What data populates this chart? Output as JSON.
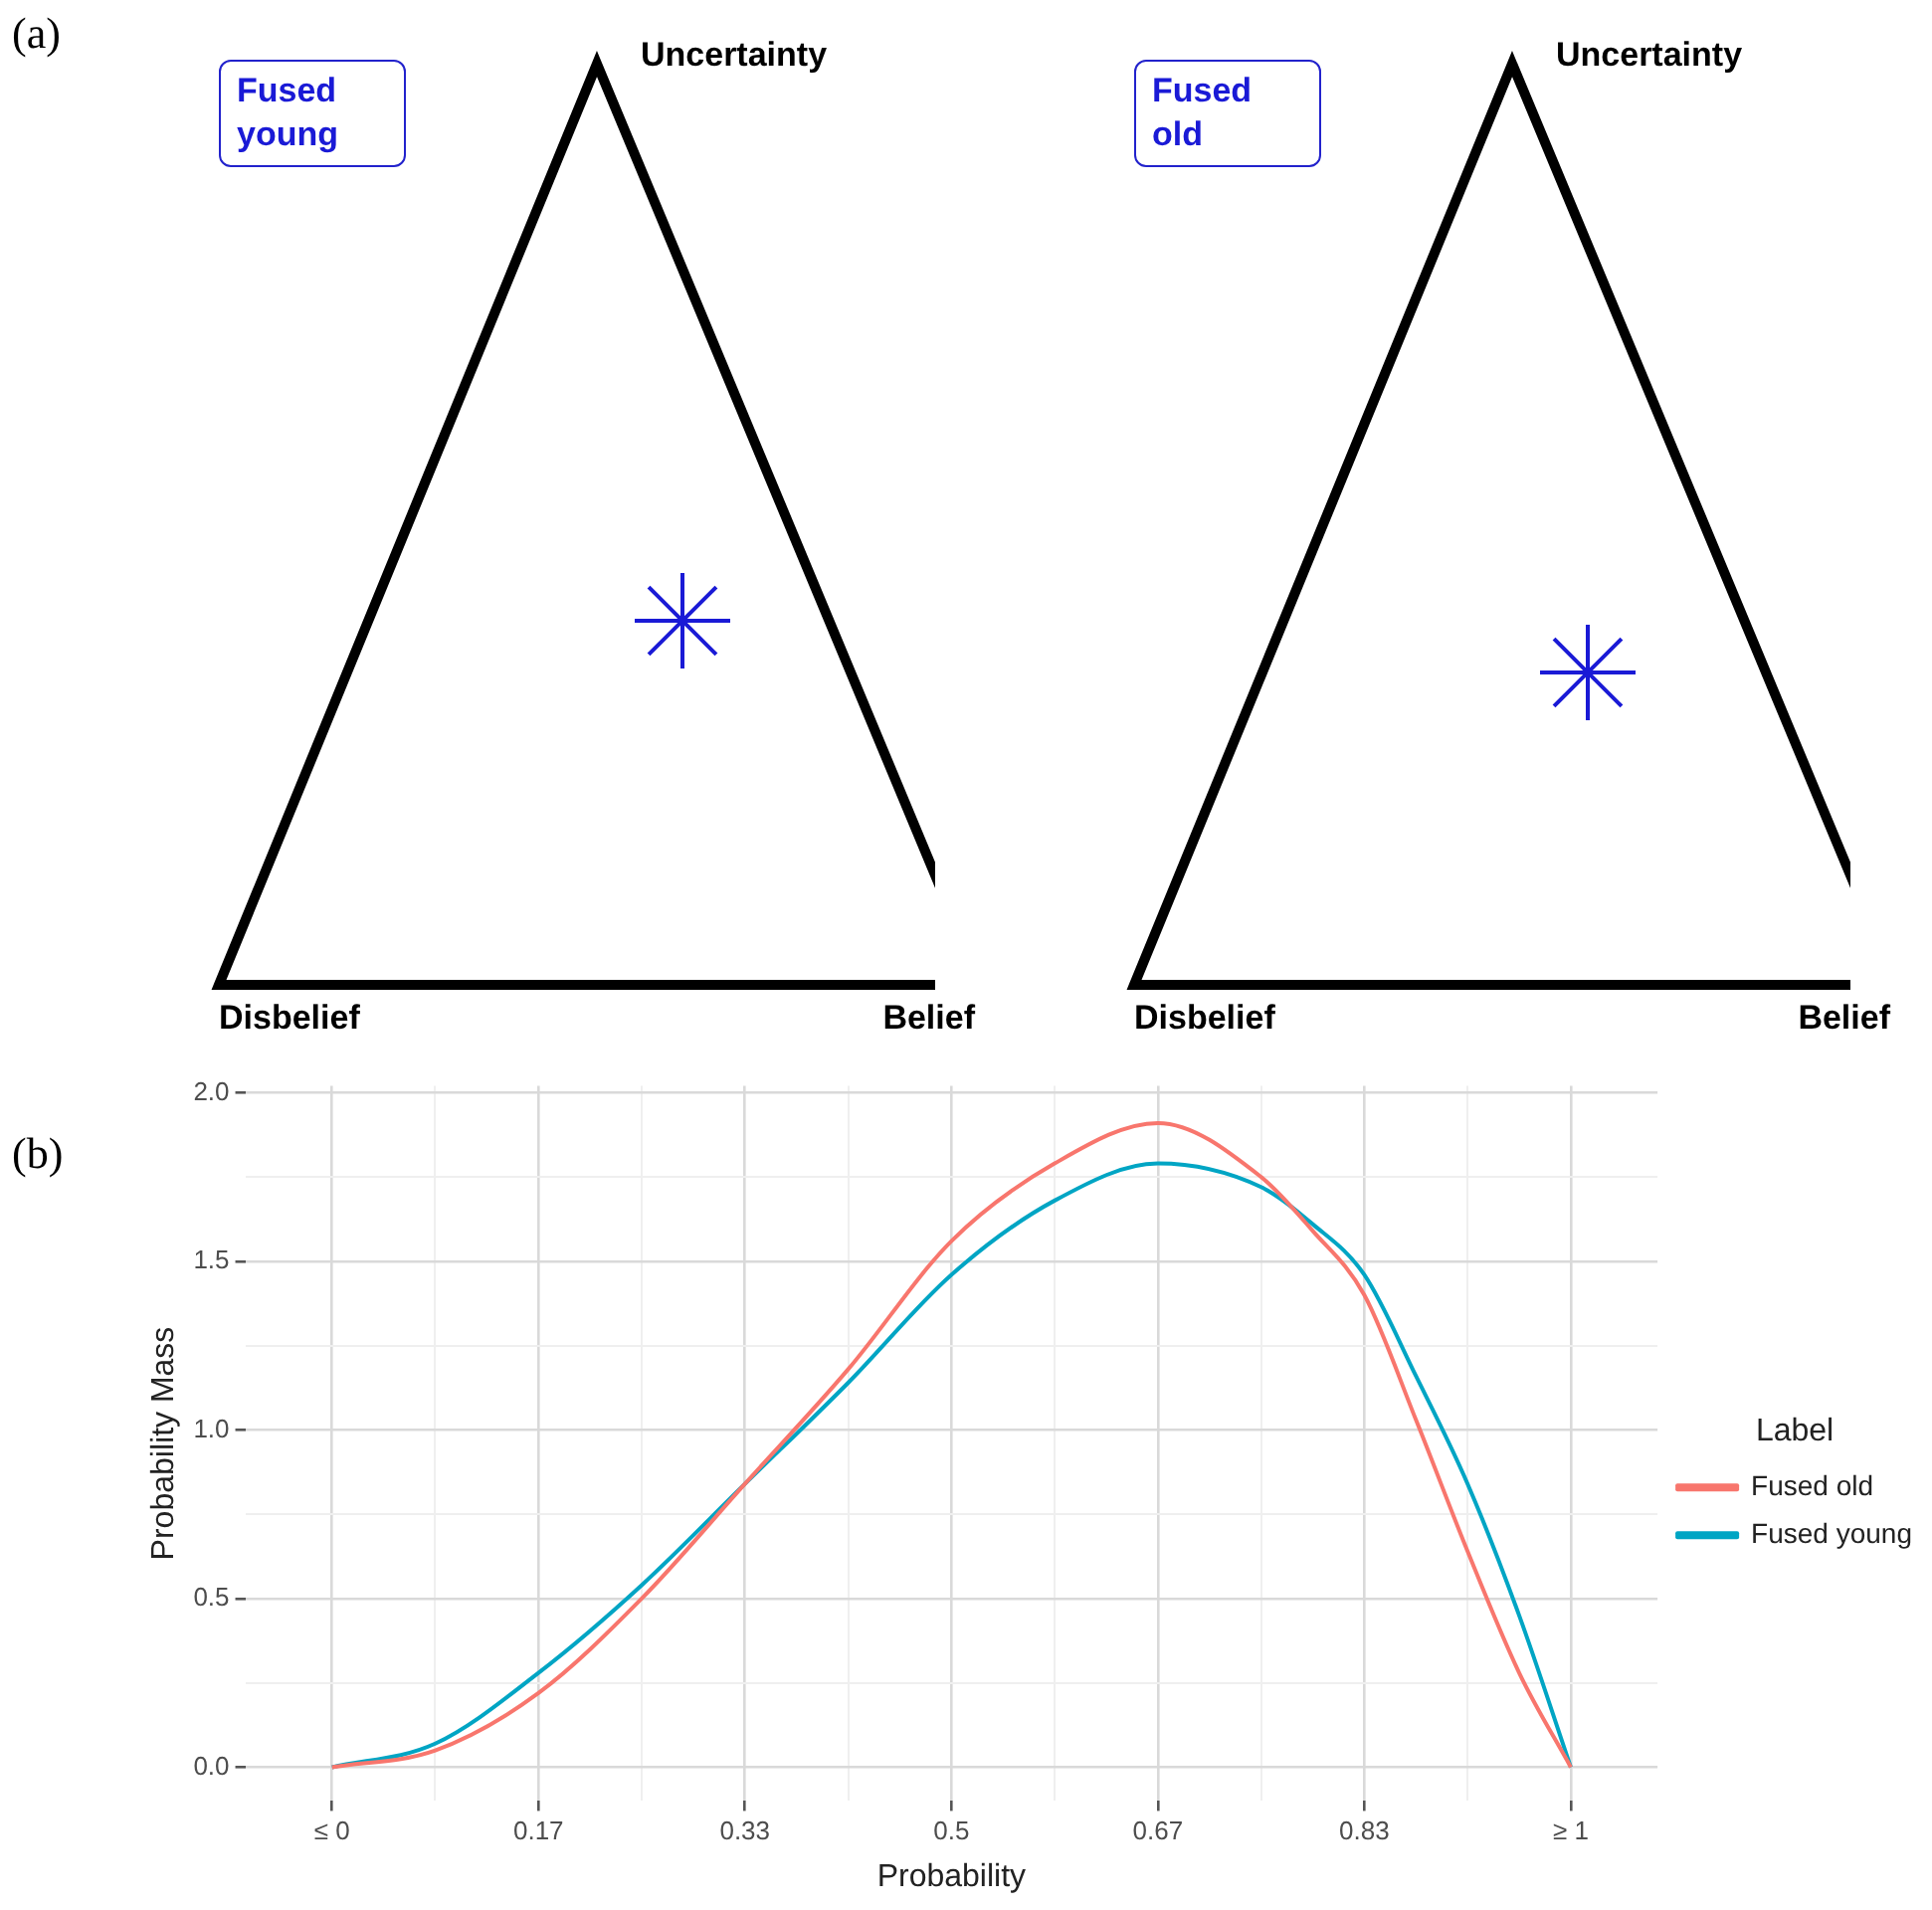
{
  "chart_data": [
    {
      "type": "other",
      "title": "Fused young",
      "annotations": [
        "(a)",
        "Uncertainty",
        "Disbelief",
        "Belief"
      ]
    },
    {
      "type": "other",
      "title": "Fused old",
      "annotations": [
        "Uncertainty",
        "Disbelief",
        "Belief"
      ]
    },
    {
      "type": "line",
      "xlabel": "Probability",
      "ylabel": "Probability Mass",
      "legend_title": "Label",
      "legend": "right",
      "grid": true,
      "marker": "none",
      "line_style": "solid",
      "annotations": [
        "(b)"
      ],
      "xlim": [
        -0.07,
        1.07
      ],
      "ylim": [
        -0.1,
        2.02
      ],
      "xticks": [
        {
          "value": 0,
          "label": "≤ 0"
        },
        {
          "value": 0.0833,
          "label": null
        },
        {
          "value": 0.1667,
          "label": "0.17"
        },
        {
          "value": 0.25,
          "label": null
        },
        {
          "value": 0.3333,
          "label": "0.33"
        },
        {
          "value": 0.4167,
          "label": null
        },
        0.5,
        {
          "value": 0.5833,
          "label": null
        },
        {
          "value": 0.6667,
          "label": "0.67"
        },
        {
          "value": 0.75,
          "label": null
        },
        {
          "value": 0.8333,
          "label": "0.83"
        },
        {
          "value": 0.9167,
          "label": null
        },
        {
          "value": 1,
          "label": "≥ 1"
        }
      ],
      "yticks": [
        {
          "value": 0,
          "label": "0.0"
        },
        {
          "value": 0.25,
          "label": null
        },
        0.5,
        {
          "value": 0.75,
          "label": null
        },
        {
          "value": 1,
          "label": "1.0"
        },
        {
          "value": 1.25,
          "label": null
        },
        1.5,
        {
          "value": 1.75,
          "label": null
        },
        {
          "value": 2,
          "label": "2.0"
        }
      ],
      "x": [
        0,
        0.0833,
        0.1667,
        0.25,
        0.3333,
        0.4167,
        0.5,
        0.5833,
        0.6667,
        0.75,
        0.7917,
        0.8333,
        0.875,
        0.9167,
        0.9583,
        1
      ],
      "series": [
        {
          "name": "Fused old",
          "color": "#f8766d",
          "values": [
            0,
            0.05,
            0.22,
            0.5,
            0.84,
            1.18,
            1.56,
            1.79,
            1.91,
            1.75,
            1.59,
            1.4,
            1.03,
            0.64,
            0.28,
            0
          ]
        },
        {
          "name": "Fused young",
          "color": "#00a5c4",
          "values": [
            0,
            0.07,
            0.28,
            0.54,
            0.84,
            1.14,
            1.46,
            1.68,
            1.79,
            1.72,
            1.61,
            1.46,
            1.16,
            0.84,
            0.45,
            0
          ]
        }
      ]
    }
  ]
}
